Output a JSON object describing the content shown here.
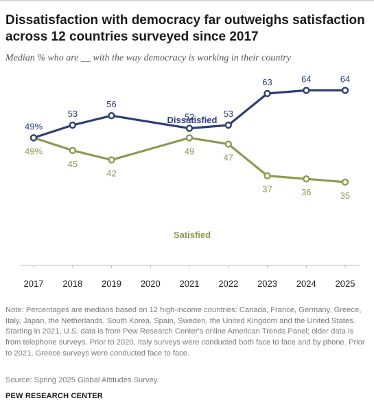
{
  "title": "Dissatisfaction with democracy far outweighs satisfaction across 12 countries surveyed since 2017",
  "subtitle": "Median % who are __ with the way democracy is working in their country",
  "note": "Note: Percentages are medians based on 12 high-income countries: Canada, France, Germany, Greece, Italy, Japan, the Netherlands, South Korea, Spain, Sweden, the United Kingdom and the United States. Starting in 2021, U.S. data is from Pew Research Center's online American Trends Panel; older data is from telephone surveys. Prior to 2020, Italy surveys were conducted both face to face and by phone. Prior to 2021, Greece surveys were conducted face to face.",
  "source": "Source: Spring 2025 Global Attitudes Survey.",
  "organization": "PEW RESEARCH CENTER",
  "chart_data": {
    "type": "line",
    "x": [
      2017,
      2018,
      2019,
      2020,
      2021,
      2022,
      2023,
      2024,
      2025
    ],
    "series": [
      {
        "name": "Dissatisfied",
        "color": "#2c3e75",
        "points": [
          {
            "x": 2017,
            "y": 49,
            "label": "49%"
          },
          {
            "x": 2018,
            "y": 53,
            "label": "53"
          },
          {
            "x": 2019,
            "y": 56,
            "label": "56"
          },
          {
            "x": 2021,
            "y": 52,
            "label": "52"
          },
          {
            "x": 2022,
            "y": 53,
            "label": "53"
          },
          {
            "x": 2023,
            "y": 63,
            "label": "63"
          },
          {
            "x": 2024,
            "y": 64,
            "label": "64"
          },
          {
            "x": 2025,
            "y": 64,
            "label": "64"
          }
        ]
      },
      {
        "name": "Satisfied",
        "color": "#8c9a52",
        "points": [
          {
            "x": 2017,
            "y": 49,
            "label": "49%"
          },
          {
            "x": 2018,
            "y": 45,
            "label": "45"
          },
          {
            "x": 2019,
            "y": 42,
            "label": "42"
          },
          {
            "x": 2021,
            "y": 49,
            "label": "49"
          },
          {
            "x": 2022,
            "y": 47,
            "label": "47"
          },
          {
            "x": 2023,
            "y": 37,
            "label": "37"
          },
          {
            "x": 2024,
            "y": 36,
            "label": "36"
          },
          {
            "x": 2025,
            "y": 35,
            "label": "35"
          }
        ]
      }
    ],
    "ylim": [
      20,
      80
    ],
    "grid": false,
    "legend": "direct labels on lines"
  }
}
